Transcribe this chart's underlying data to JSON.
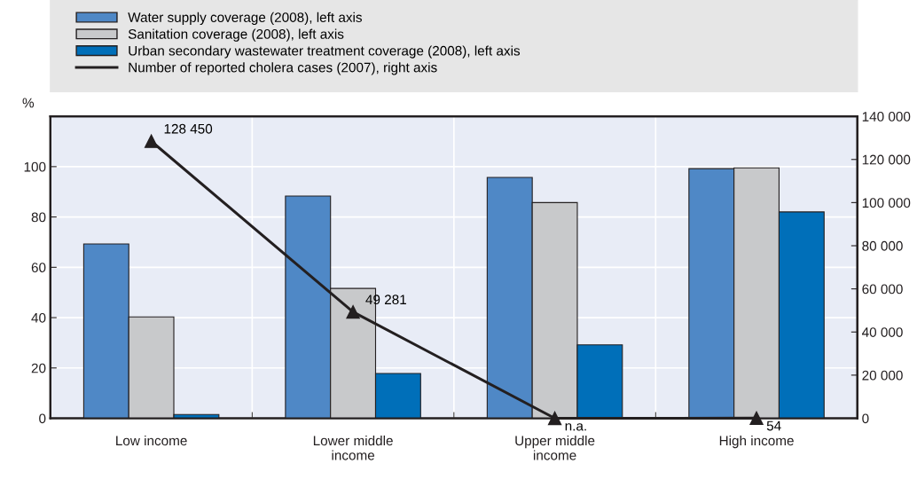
{
  "chart_data": {
    "type": "bar",
    "categories": [
      "Low income",
      "Lower middle\nincome",
      "Upper middle\nincome",
      "High income"
    ],
    "ylabel": "%",
    "ylim": [
      0,
      120
    ],
    "yticks": [
      0,
      20,
      40,
      60,
      80,
      100
    ],
    "y2lim": [
      0,
      140000
    ],
    "y2ticks": [
      {
        "value": 0,
        "label": "0"
      },
      {
        "value": 20000,
        "label": "20 000"
      },
      {
        "value": 40000,
        "label": "40 000"
      },
      {
        "value": 60000,
        "label": "60 000"
      },
      {
        "value": 80000,
        "label": "80 000"
      },
      {
        "value": 100000,
        "label": "100 000"
      },
      {
        "value": 120000,
        "label": "120 000"
      },
      {
        "value": 140000,
        "label": "140 000"
      }
    ],
    "grid": true,
    "legend": "top",
    "series": [
      {
        "name": "Water supply coverage (2008), left axis",
        "color": "#4f88c6",
        "values": [
          69.3,
          88.3,
          95.7,
          99.2
        ]
      },
      {
        "name": "Sanitation coverage (2008), left axis",
        "color": "#c8c9cb",
        "values": [
          40.3,
          51.6,
          85.7,
          99.5
        ]
      },
      {
        "name": "Urban secondary wastewater treatment coverage (2008), left axis",
        "color": "#006fb9",
        "values": [
          1.5,
          17.8,
          29.2,
          82
        ]
      },
      {
        "name": "Number of reported cholera cases (2007), right axis",
        "type": "line",
        "axis": "y2",
        "color": "#231f20",
        "marker": "triangle",
        "values": [
          128450,
          49281,
          0,
          54
        ],
        "value_labels": [
          "128 450",
          "49 281",
          "n.a.",
          "54"
        ]
      }
    ]
  }
}
